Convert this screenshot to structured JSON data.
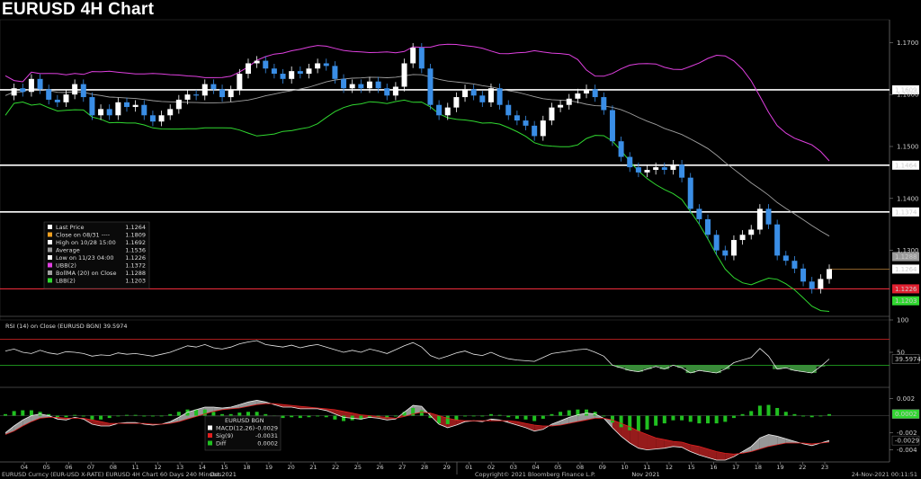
{
  "title": "EURUSD 4H Chart",
  "footer": {
    "left": "EURUSD Curncy (EUR-USD X-RATE) EURUSD 4H Chart 60 Days 240 Minutes",
    "center": "Copyright© 2021 Bloomberg Finance L.P.",
    "right": "24-Nov-2021 00:11:51"
  },
  "colors": {
    "up": "#ffffff",
    "down": "#3a8ee6",
    "ubb": "#e040e0",
    "sma": "#a0a0a0",
    "lbb": "#30d830",
    "level": "#ffffff",
    "low_line": "#ff3040"
  },
  "chart_data": [
    {
      "type": "candlestick",
      "title": "EURUSD 4H Chart",
      "categories": [
        "04",
        "05",
        "06",
        "07",
        "08",
        "11",
        "12",
        "13",
        "14",
        "15",
        "18",
        "19",
        "20",
        "21",
        "22",
        "25",
        "26",
        "27",
        "28",
        "29",
        "01",
        "02",
        "03",
        "04",
        "05",
        "08",
        "09",
        "10",
        "11",
        "12",
        "15",
        "16",
        "17",
        "18",
        "19",
        "22",
        "23"
      ],
      "month_labels": [
        {
          "label": "Oct 2021",
          "after": "12"
        },
        {
          "label": "Nov 2021",
          "after": "11"
        }
      ],
      "ylim": [
        1.118,
        1.173
      ],
      "yticks": [
        1.17,
        1.16,
        1.15,
        1.14,
        1.13
      ],
      "ytick_labels": [
        "1.1700",
        "1.1600",
        "1.1500",
        "1.1400",
        "1.1300"
      ],
      "horizontal_levels": [
        1.1609,
        1.1464,
        1.1374
      ],
      "horizontal_level_labels": [
        "1.1609",
        "1.1464",
        "1.1374"
      ],
      "low_level": 1.1226,
      "low_level_label": "1.1226",
      "price_tags": [
        {
          "label": "1.1288",
          "value": 1.1288,
          "color": "#9a9a9a"
        },
        {
          "label": "1.1264",
          "value": 1.1264,
          "color": "#ffffff"
        },
        {
          "label": "1.1203",
          "value": 1.1203,
          "color": "#30d830"
        }
      ],
      "close_series": [
        1.1598,
        1.1612,
        1.1605,
        1.163,
        1.161,
        1.159,
        1.1585,
        1.16,
        1.162,
        1.1595,
        1.156,
        1.1572,
        1.156,
        1.1585,
        1.1576,
        1.158,
        1.156,
        1.1548,
        1.156,
        1.1572,
        1.159,
        1.16,
        1.1598,
        1.162,
        1.161,
        1.1595,
        1.1608,
        1.164,
        1.166,
        1.1665,
        1.165,
        1.164,
        1.163,
        1.1645,
        1.164,
        1.165,
        1.166,
        1.1655,
        1.163,
        1.1612,
        1.162,
        1.1612,
        1.1625,
        1.1612,
        1.1598,
        1.1615,
        1.166,
        1.169,
        1.165,
        1.158,
        1.156,
        1.1575,
        1.1595,
        1.161,
        1.1598,
        1.1585,
        1.1612,
        1.158,
        1.156,
        1.155,
        1.154,
        1.152,
        1.155,
        1.1575,
        1.158,
        1.1592,
        1.1602,
        1.161,
        1.1595,
        1.157,
        1.151,
        1.148,
        1.146,
        1.145,
        1.1455,
        1.146,
        1.1455,
        1.1465,
        1.144,
        1.138,
        1.136,
        1.133,
        1.13,
        1.129,
        1.132,
        1.133,
        1.134,
        1.138,
        1.135,
        1.129,
        1.128,
        1.1265,
        1.124,
        1.1226,
        1.1245,
        1.1264
      ],
      "legend": [
        {
          "label": "Last Price",
          "value": "1.1264"
        },
        {
          "label": "Close on 08/31 ----",
          "value": "1.1809"
        },
        {
          "label": "High on 10/28 15:00",
          "value": "1.1692"
        },
        {
          "label": "Average",
          "value": "1.1536"
        },
        {
          "label": "Low on 11/23 04:00",
          "value": "1.1226"
        },
        {
          "label": "UBB(2)",
          "value": "1.1372"
        },
        {
          "label": "BollMA (20)  on Close",
          "value": "1.1288"
        },
        {
          "label": "LBB(2)",
          "value": "1.1203"
        }
      ]
    },
    {
      "type": "line",
      "title": "RSI (14)  on Close (EURUSD BGN) 39.5974",
      "ylim": [
        0,
        100
      ],
      "yticks": [
        100,
        50
      ],
      "ytick_labels": [
        "100",
        "50"
      ],
      "overbought": 70,
      "oversold": 30,
      "current_label": "39.5974",
      "values": [
        52,
        55,
        50,
        48,
        53,
        49,
        47,
        51,
        50,
        48,
        44,
        46,
        45,
        49,
        47,
        48,
        46,
        44,
        47,
        50,
        55,
        60,
        58,
        62,
        57,
        55,
        58,
        63,
        66,
        68,
        62,
        60,
        58,
        61,
        57,
        60,
        62,
        58,
        54,
        50,
        53,
        50,
        55,
        52,
        48,
        54,
        60,
        65,
        58,
        45,
        40,
        44,
        49,
        52,
        47,
        45,
        50,
        44,
        40,
        38,
        37,
        36,
        42,
        48,
        50,
        52,
        54,
        55,
        50,
        44,
        30,
        26,
        22,
        20,
        24,
        28,
        24,
        30,
        26,
        18,
        22,
        20,
        18,
        24,
        34,
        38,
        42,
        56,
        44,
        24,
        26,
        22,
        20,
        18,
        28,
        39.6
      ]
    },
    {
      "type": "bar",
      "title": "MACD",
      "ylim": [
        -0.0052,
        0.003
      ],
      "yticks": [
        0.002,
        -0.002,
        -0.004
      ],
      "ytick_labels": [
        "0.002",
        "-0.002",
        "-0.004"
      ],
      "value_tags": [
        {
          "label": "0.0002",
          "value": 0.0002,
          "color": "#30d830"
        },
        {
          "label": "-0.0029",
          "value": -0.0029,
          "color": "#ffffff"
        }
      ],
      "macd_values": [
        -0.002,
        -0.0012,
        -0.0005,
        0.0,
        0.0002,
        0.0,
        -0.0004,
        -0.0005,
        -0.0002,
        -0.0004,
        -0.001,
        -0.0012,
        -0.0012,
        -0.0009,
        -0.0008,
        -0.0008,
        -0.001,
        -0.0011,
        -0.001,
        -0.0007,
        -0.0002,
        0.0004,
        0.0007,
        0.001,
        0.001,
        0.0009,
        0.001,
        0.0013,
        0.0016,
        0.0018,
        0.0016,
        0.0013,
        0.001,
        0.001,
        0.0008,
        0.0008,
        0.0008,
        0.0006,
        0.0002,
        -0.0002,
        -0.0003,
        -0.0004,
        -0.0002,
        -0.0003,
        -0.0005,
        -0.0004,
        0.0004,
        0.0012,
        0.0011,
        0.0,
        -0.001,
        -0.0014,
        -0.0011,
        -0.0007,
        -0.0006,
        -0.0007,
        -0.0004,
        -0.0005,
        -0.0008,
        -0.0011,
        -0.0014,
        -0.0018,
        -0.0016,
        -0.001,
        -0.0006,
        -0.0002,
        0.0001,
        0.0003,
        0.0002,
        -0.0003,
        -0.0014,
        -0.0024,
        -0.0032,
        -0.0038,
        -0.004,
        -0.0039,
        -0.0038,
        -0.0036,
        -0.0037,
        -0.0042,
        -0.0046,
        -0.0049,
        -0.0052,
        -0.0052,
        -0.0048,
        -0.0042,
        -0.0036,
        -0.0026,
        -0.0022,
        -0.0024,
        -0.0027,
        -0.003,
        -0.0033,
        -0.0035,
        -0.0032,
        -0.0029
      ],
      "signal_values": [
        -0.0022,
        -0.0018,
        -0.0012,
        -0.0007,
        -0.0003,
        -0.0002,
        -0.0002,
        -0.0003,
        -0.0003,
        -0.0003,
        -0.0005,
        -0.0007,
        -0.0009,
        -0.0009,
        -0.0009,
        -0.0009,
        -0.0009,
        -0.001,
        -0.001,
        -0.0009,
        -0.0007,
        -0.0004,
        -0.0001,
        0.0002,
        0.0005,
        0.0007,
        0.0008,
        0.0009,
        0.0011,
        0.0013,
        0.0014,
        0.0014,
        0.0013,
        0.0012,
        0.0011,
        0.001,
        0.0009,
        0.0008,
        0.0007,
        0.0005,
        0.0003,
        0.0001,
        0.0,
        -0.0001,
        -0.0002,
        -0.0003,
        -0.0001,
        0.0002,
        0.0004,
        0.0003,
        0.0,
        -0.0003,
        -0.0005,
        -0.0006,
        -0.0006,
        -0.0006,
        -0.0006,
        -0.0006,
        -0.0006,
        -0.0007,
        -0.0009,
        -0.0011,
        -0.0012,
        -0.0012,
        -0.0011,
        -0.0009,
        -0.0007,
        -0.0005,
        -0.0003,
        -0.0003,
        -0.0005,
        -0.0009,
        -0.0013,
        -0.0018,
        -0.0022,
        -0.0026,
        -0.0028,
        -0.003,
        -0.0031,
        -0.0034,
        -0.0036,
        -0.0039,
        -0.0042,
        -0.0044,
        -0.0045,
        -0.0044,
        -0.0042,
        -0.0039,
        -0.0036,
        -0.0034,
        -0.0032,
        -0.0032,
        -0.0032,
        -0.0033,
        -0.0032,
        -0.0031
      ],
      "legend": [
        {
          "label": "EURUSD BGN",
          "value": ""
        },
        {
          "label": "MACD(12,26)",
          "value": "-0.0029"
        },
        {
          "label": "Sig(9)",
          "value": "-0.0031"
        },
        {
          "label": "Diff",
          "value": "0.0002"
        }
      ]
    }
  ]
}
